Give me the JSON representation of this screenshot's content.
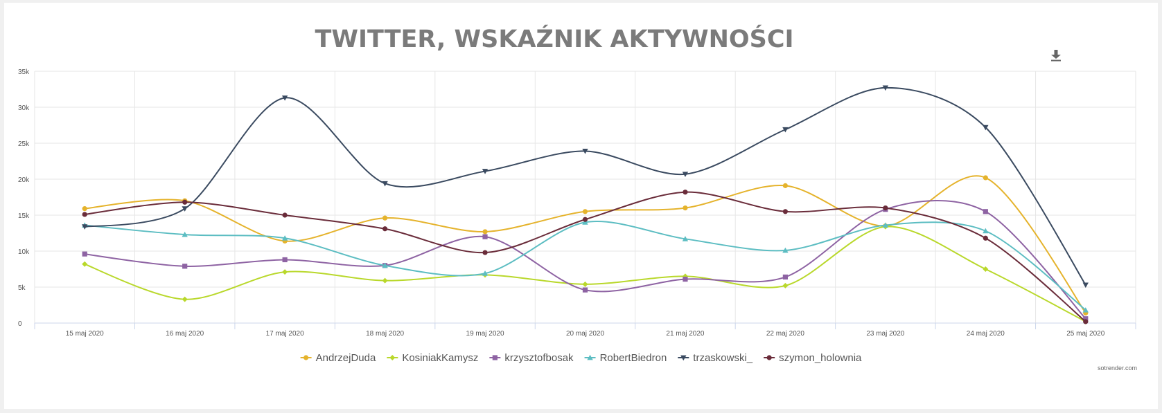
{
  "chart_data": {
    "type": "line",
    "title": "TWITTER, WSKAŹNIK AKTYWNOŚCI",
    "xlabel": "",
    "ylabel": "",
    "categories": [
      "15 maj 2020",
      "16 maj 2020",
      "17 maj 2020",
      "18 maj 2020",
      "19 maj 2020",
      "20 maj 2020",
      "21 maj 2020",
      "22 maj 2020",
      "23 maj 2020",
      "24 maj 2020",
      "25 maj 2020"
    ],
    "ylim": [
      0,
      35000
    ],
    "yticks": [
      "0",
      "5k",
      "10k",
      "15k",
      "20k",
      "25k",
      "30k",
      "35k"
    ],
    "grid": true,
    "legend_position": "bottom",
    "series": [
      {
        "name": "AndrzejDuda",
        "color": "#e5b32c",
        "marker": "circle",
        "values": [
          15900,
          17000,
          11400,
          14600,
          12700,
          15500,
          16000,
          19100,
          13500,
          20200,
          1400
        ]
      },
      {
        "name": "KosiniakKamysz",
        "color": "#b9d82b",
        "marker": "diamond",
        "values": [
          8200,
          3300,
          7100,
          5900,
          6700,
          5400,
          6500,
          5200,
          13400,
          7500,
          200
        ]
      },
      {
        "name": "krzysztofbosak",
        "color": "#8e63a3",
        "marker": "square",
        "values": [
          9600,
          7900,
          8800,
          8000,
          12000,
          4600,
          6100,
          6400,
          15800,
          15500,
          600
        ]
      },
      {
        "name": "RobertBiedron",
        "color": "#5cbdc2",
        "marker": "triangle",
        "values": [
          13600,
          12300,
          11800,
          8000,
          6900,
          14000,
          11700,
          10100,
          13600,
          12800,
          1800
        ]
      },
      {
        "name": "trzaskowski_",
        "color": "#3a4a60",
        "marker": "triangle-down",
        "values": [
          13400,
          15900,
          31300,
          19400,
          21100,
          23900,
          20700,
          26900,
          32700,
          27200,
          5300
        ]
      },
      {
        "name": "szymon_holownia",
        "color": "#6a2c3a",
        "marker": "circle",
        "values": [
          15100,
          16800,
          15000,
          13100,
          9800,
          14400,
          18200,
          15500,
          16000,
          11800,
          200
        ]
      }
    ]
  },
  "branding": "sotrender.com",
  "download_icon": "download-icon"
}
